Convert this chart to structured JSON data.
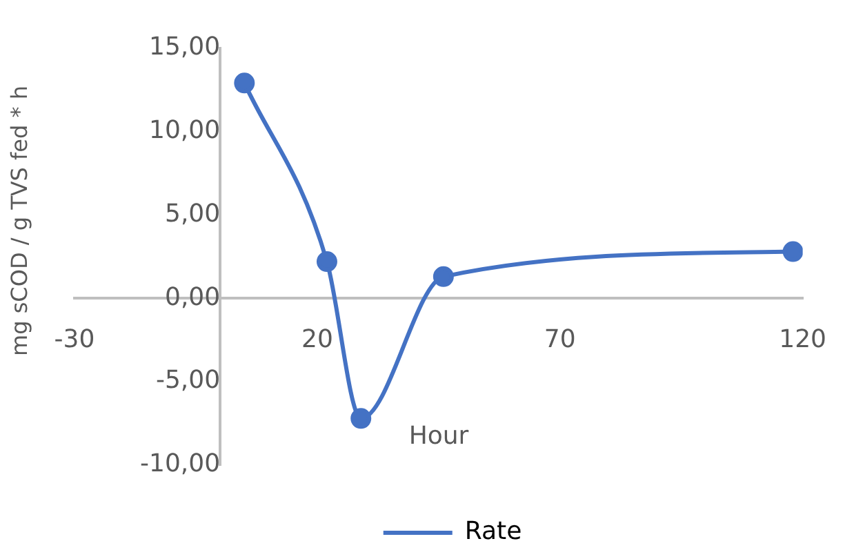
{
  "chart_data": {
    "type": "line",
    "xlabel": "Hour",
    "ylabel": "mg sCOD / g TVS fed * h",
    "x": [
      5,
      22,
      29,
      46,
      118
    ],
    "series": [
      {
        "name": "Rate",
        "color": "#4472c4",
        "values": [
          12.9,
          2.2,
          -7.2,
          1.3,
          2.8
        ]
      }
    ],
    "xlim": [
      -30,
      120
    ],
    "xticks": [
      -30,
      20,
      70,
      120
    ],
    "ylim": [
      -10,
      15
    ],
    "yticks": [
      {
        "value": -10,
        "label": "-10,00"
      },
      {
        "value": -5,
        "label": "-5,00"
      },
      {
        "value": 0,
        "label": "0,00"
      },
      {
        "value": 5,
        "label": "5,00"
      },
      {
        "value": 10,
        "label": "10,00"
      },
      {
        "value": 15,
        "label": "15,00"
      }
    ],
    "grid": false,
    "legend": "bottom",
    "marker": "circle",
    "line_style": "solid"
  }
}
